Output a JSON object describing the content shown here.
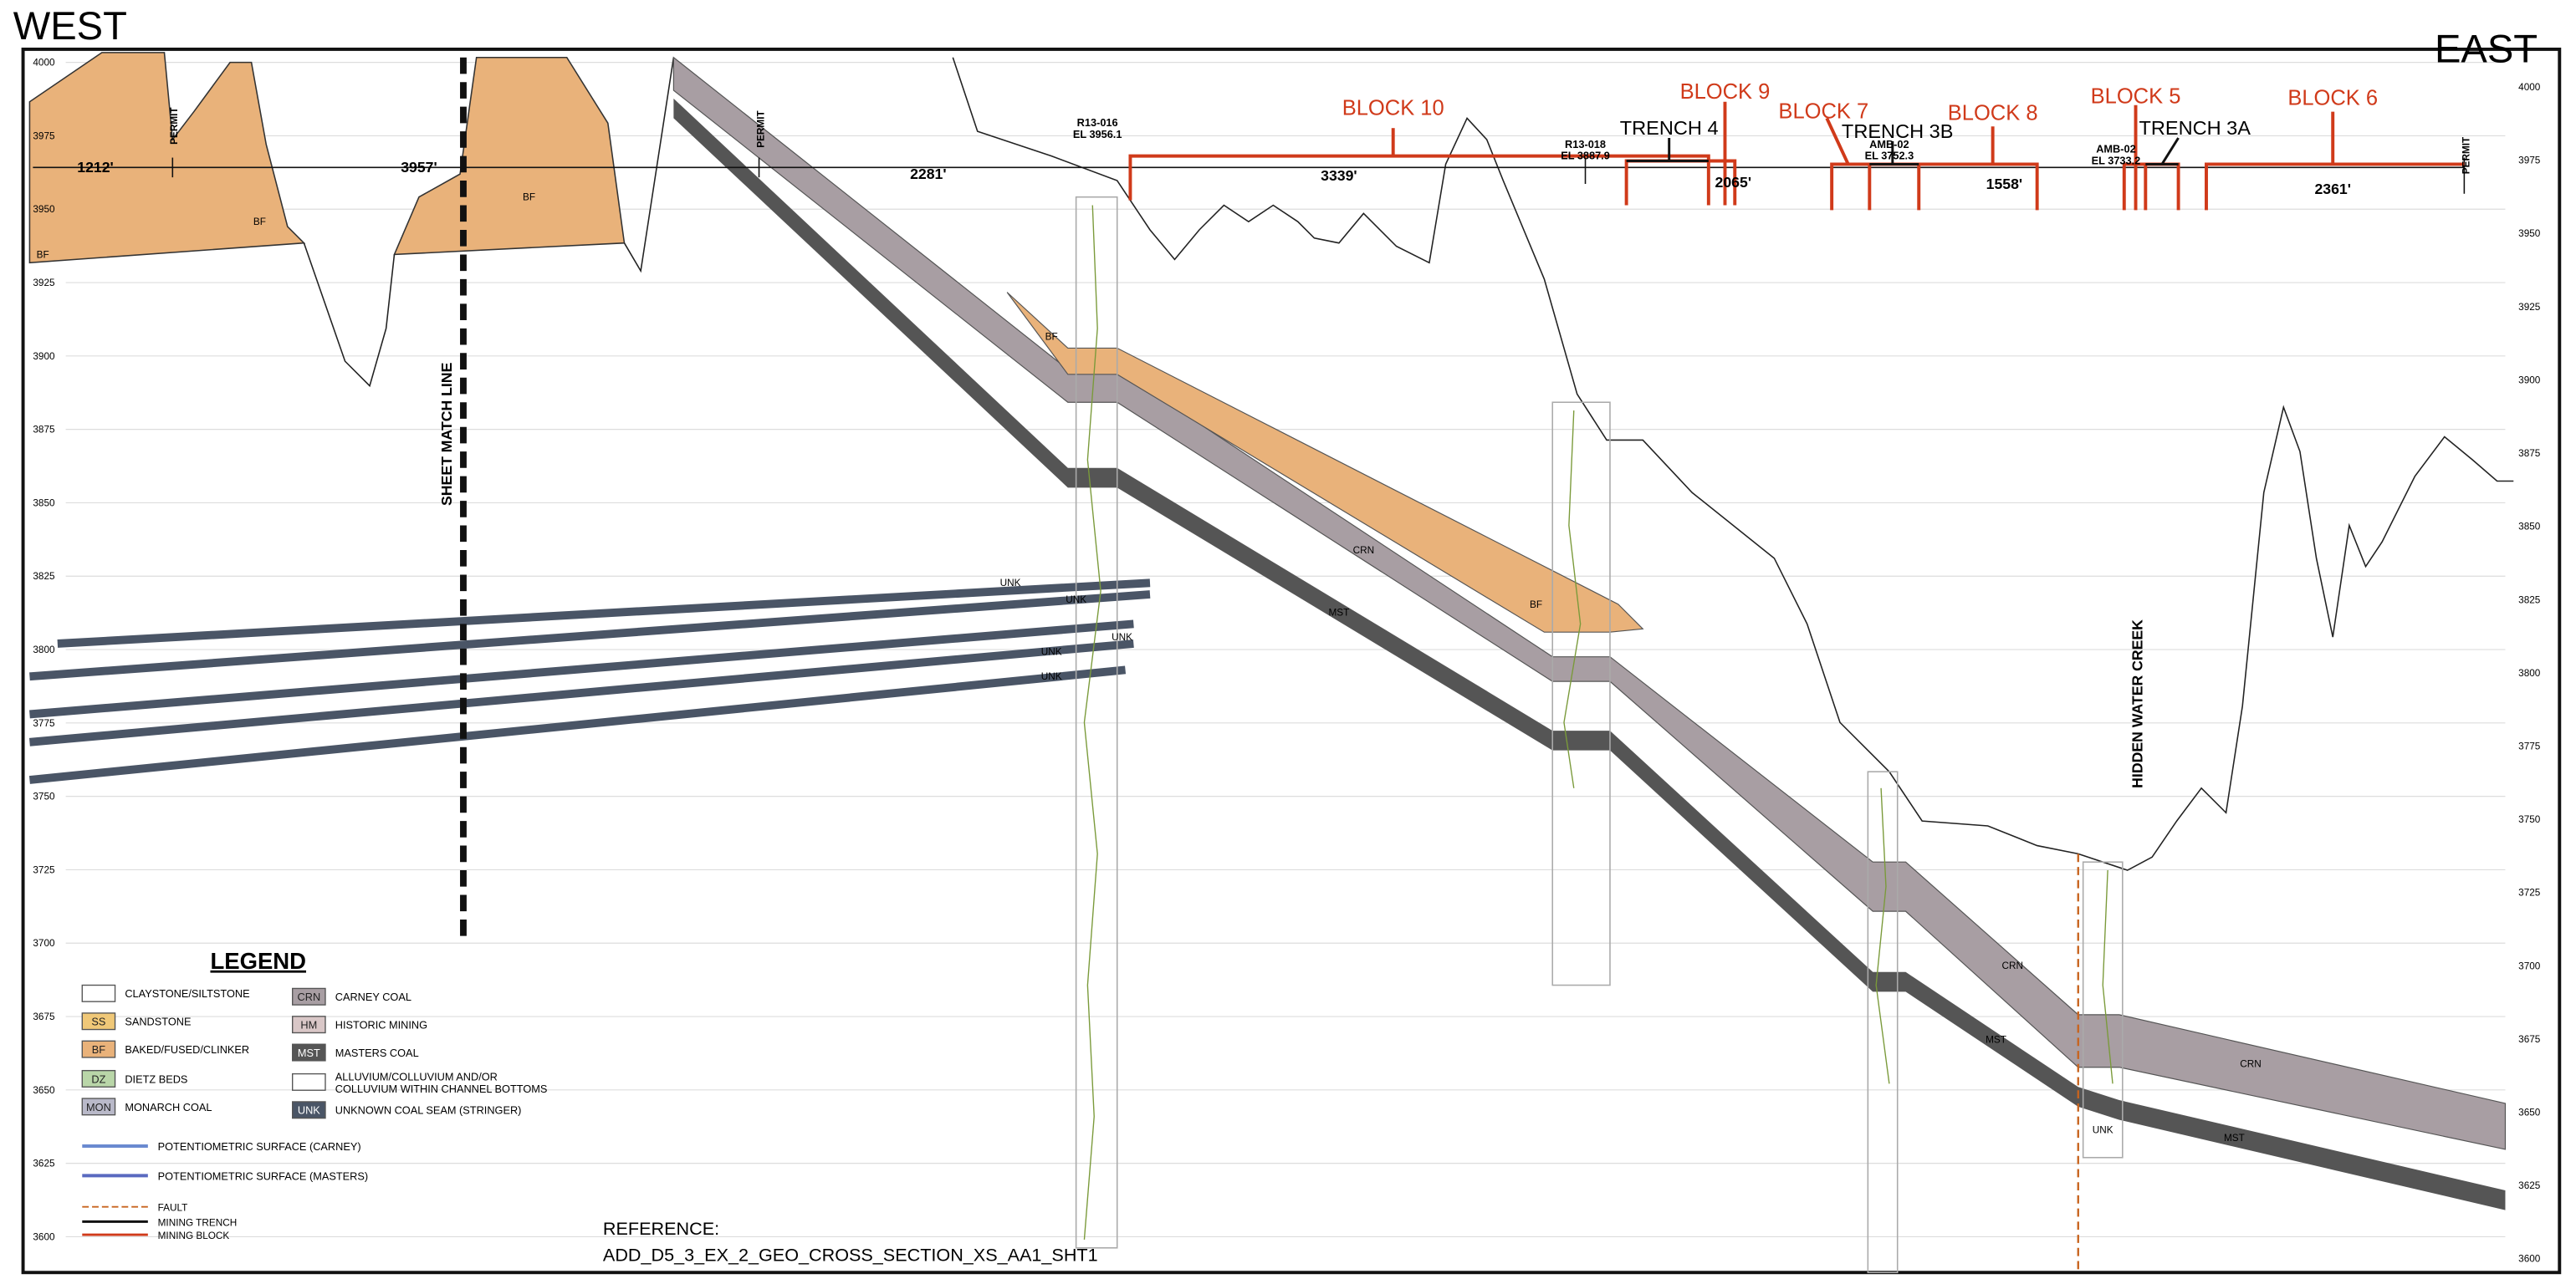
{
  "header": {
    "west": "WEST",
    "east": "EAST"
  },
  "elevations_left": [
    4000,
    3975,
    3950,
    3925,
    3900,
    3875,
    3850,
    3825,
    3800,
    3775,
    3750,
    3725,
    3700,
    3675,
    3650,
    3625,
    3600
  ],
  "elevations_right": [
    4000,
    3975,
    3950,
    3925,
    3900,
    3875,
    3850,
    3825,
    3800,
    3775,
    3750,
    3725,
    3700,
    3675,
    3650,
    3625,
    3600
  ],
  "distances": [
    "1212'",
    "3957'",
    "2281'",
    "3339'",
    "2065'",
    "1558'",
    "2361'"
  ],
  "permits": [
    "PERMIT",
    "PERMIT",
    "PERMIT"
  ],
  "blocks": [
    "BLOCK 10",
    "BLOCK 9",
    "BLOCK 7",
    "BLOCK 8",
    "BLOCK 5",
    "BLOCK 6"
  ],
  "trenches": [
    "TRENCH 4",
    "TRENCH 3B",
    "TRENCH 3A"
  ],
  "boreholes": [
    {
      "id": "R13-016",
      "elevation": "EL 3956.1"
    },
    {
      "id": "R13-018",
      "elevation": "EL 3887.9"
    },
    {
      "id": "AMB-02",
      "elevation": "EL 3752.3"
    },
    {
      "id": "AMB-02",
      "elevation": "EL 3733.2"
    }
  ],
  "unit_labels": [
    "BF",
    "BF",
    "BF",
    "BF",
    "BF",
    "CRN",
    "MST",
    "CRN",
    "MST",
    "CRN",
    "MST",
    "UNK",
    "UNK",
    "UNK",
    "UNK",
    "UNK",
    "UNK"
  ],
  "annotations": {
    "sheet_match_line": "SHEET MATCH LINE",
    "hidden_water_creek": "HIDDEN WATER CREEK"
  },
  "legend": {
    "title": "LEGEND",
    "items": [
      {
        "label": "CLAYSTONE/SILTSTONE"
      },
      {
        "code": "SS",
        "label": "SANDSTONE"
      },
      {
        "code": "BF",
        "label": "BAKED/FUSED/CLINKER"
      },
      {
        "code": "DZ",
        "label": "DIETZ BEDS"
      },
      {
        "code": "MON",
        "label": "MONARCH COAL"
      },
      {
        "code": "CRN",
        "label": "CARNEY COAL"
      },
      {
        "code": "HM",
        "label": "HISTORIC MINING"
      },
      {
        "code": "MST",
        "label": "MASTERS COAL"
      },
      {
        "label": [
          "ALLUVIUM/COLLUVIUM AND/OR",
          "COLLUVIUM WITHIN CHANNEL BOTTOMS"
        ]
      },
      {
        "code": "UNK",
        "label": "UNKNOWN COAL SEAM (STRINGER)"
      }
    ],
    "lines": [
      "POTENTIOMETRIC SURFACE (CARNEY)",
      "POTENTIOMETRIC SURFACE (MASTERS)",
      "FAULT",
      "MINING TRENCH",
      "MINING BLOCK"
    ]
  },
  "reference": {
    "label": "REFERENCE:",
    "file": "ADD_D5_3_EX_2_GEO_CROSS_SECTION_XS_AA1_SHT1"
  }
}
